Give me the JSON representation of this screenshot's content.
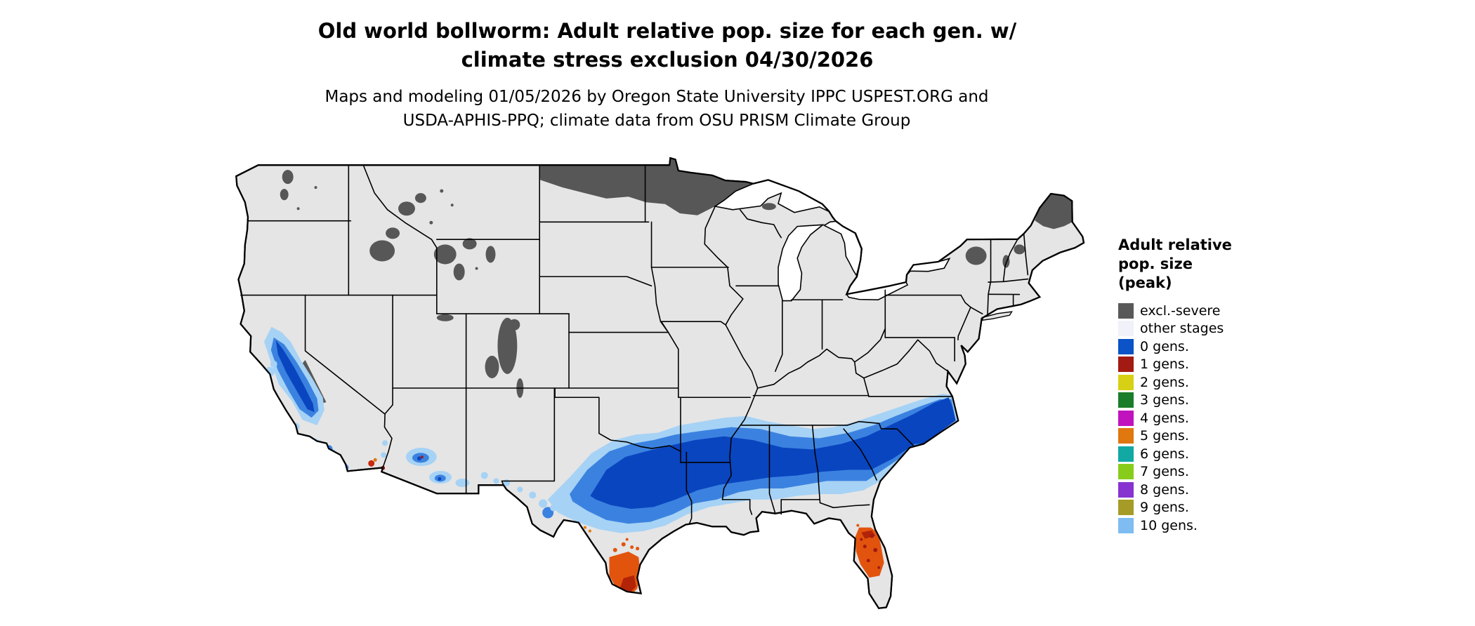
{
  "title": {
    "line1": "Old world bollworm: Adult relative pop. size for each gen. w/",
    "line2": "climate stress exclusion 04/30/2026"
  },
  "subtitle": {
    "line1": "Maps and modeling 01/05/2026 by Oregon State University IPPC USPEST.ORG and",
    "line2": "USDA-APHIS-PPQ; climate data from OSU PRISM Climate Group"
  },
  "legend": {
    "title_lines": [
      "Adult relative",
      "pop. size",
      "(peak)"
    ],
    "items": [
      {
        "label": "excl.-severe",
        "color": "#595959"
      },
      {
        "label": "other stages",
        "color": "#f0f1f9"
      },
      {
        "label": "0 gens.",
        "color": "#0b53c7"
      },
      {
        "label": "1 gens.",
        "color": "#a21a12"
      },
      {
        "label": "2 gens.",
        "color": "#d8d014"
      },
      {
        "label": "3 gens.",
        "color": "#1a7d29"
      },
      {
        "label": "4 gens.",
        "color": "#c013be"
      },
      {
        "label": "5 gens.",
        "color": "#e0770f"
      },
      {
        "label": "6 gens.",
        "color": "#12a8a4"
      },
      {
        "label": "7 gens.",
        "color": "#88cc1b"
      },
      {
        "label": "8 gens.",
        "color": "#8633d1"
      },
      {
        "label": "9 gens.",
        "color": "#a59b26"
      },
      {
        "label": "10 gens.",
        "color": "#7fbcf2"
      }
    ]
  },
  "map": {
    "region": "Contiguous United States",
    "land_color": "#e5e5e5",
    "border_color": "#000000",
    "exclusion_color": "#575757",
    "zero_gen_core_color": "#0a45c0",
    "orange_color": "#e2540e"
  }
}
